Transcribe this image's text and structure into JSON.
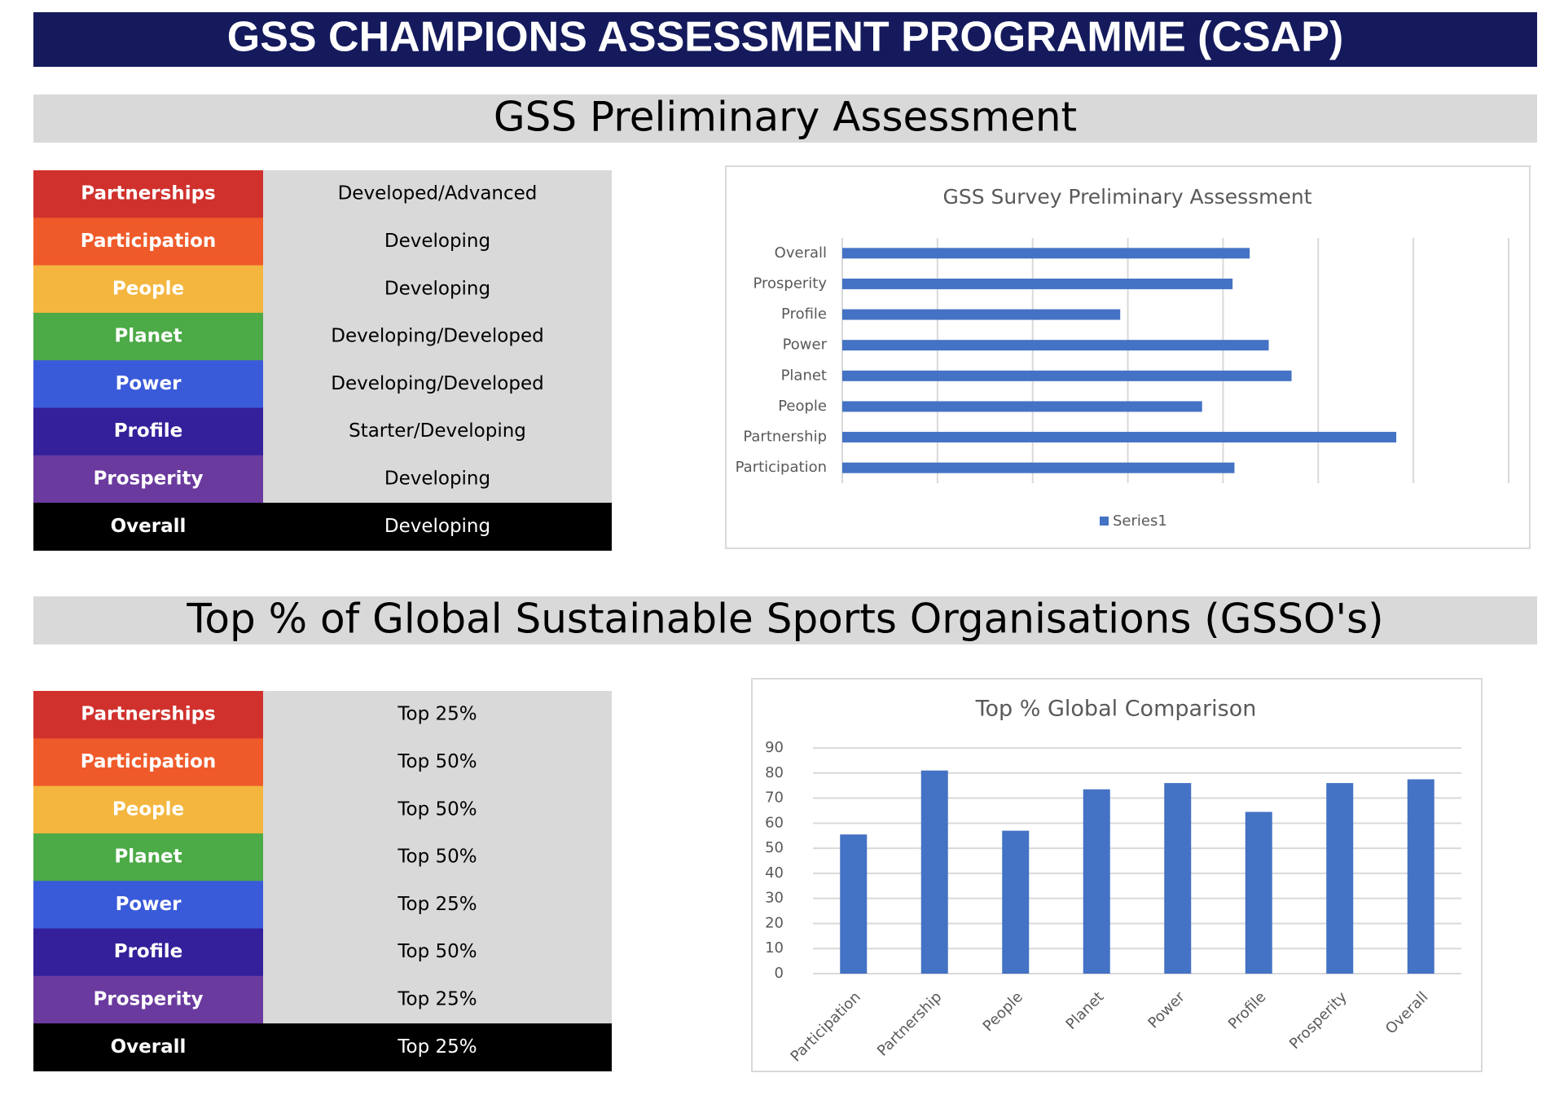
{
  "header": {
    "title": "GSS CHAMPIONS ASSESSMENT PROGRAMME (CSAP)"
  },
  "sections": [
    {
      "title": "GSS Preliminary Assessment"
    },
    {
      "title": "Top % of Global Sustainable Sports Organisations (GSSO's)"
    }
  ],
  "tables": [
    {
      "rows": [
        {
          "label": "Partnerships",
          "value": "Developed/Advanced",
          "color": "#d0312d"
        },
        {
          "label": "Participation",
          "value": "Developing",
          "color": "#ef5a2a"
        },
        {
          "label": "People",
          "value": "Developing",
          "color": "#f4b63f"
        },
        {
          "label": "Planet",
          "value": "Developing/Developed",
          "color": "#4caa47"
        },
        {
          "label": "Power",
          "value": "Developing/Developed",
          "color": "#3a5bd9"
        },
        {
          "label": "Profile",
          "value": "Starter/Developing",
          "color": "#33209a"
        },
        {
          "label": "Prosperity",
          "value": "Developing",
          "color": "#6a3a9f"
        },
        {
          "label": "Overall",
          "value": "Developing",
          "color": "#000000"
        }
      ]
    },
    {
      "rows": [
        {
          "label": "Partnerships",
          "value": "Top 25%",
          "color": "#d0312d"
        },
        {
          "label": "Participation",
          "value": "Top 50%",
          "color": "#ef5a2a"
        },
        {
          "label": "People",
          "value": "Top 50%",
          "color": "#f4b63f"
        },
        {
          "label": "Planet",
          "value": "Top 50%",
          "color": "#4caa47"
        },
        {
          "label": "Power",
          "value": "Top 25%",
          "color": "#3a5bd9"
        },
        {
          "label": "Profile",
          "value": "Top 50%",
          "color": "#33209a"
        },
        {
          "label": "Prosperity",
          "value": "Top 25%",
          "color": "#6a3a9f"
        },
        {
          "label": "Overall",
          "value": "Top 25%",
          "color": "#000000"
        }
      ]
    }
  ],
  "chart_data": [
    {
      "type": "hbar",
      "title": "GSS Survey Preliminary Assessment",
      "categories": [
        "Participation",
        "Partnership",
        "People",
        "Planet",
        "Power",
        "Profile",
        "Prosperity",
        "Overall"
      ],
      "series": [
        {
          "name": "Series1",
          "color": "#4472c4",
          "values": [
            2.06,
            2.91,
            1.89,
            2.36,
            2.24,
            1.46,
            2.05,
            2.14
          ]
        }
      ],
      "xlim": [
        0,
        3.5
      ],
      "xticks": [
        0,
        0.5,
        1,
        1.5,
        2,
        2.5,
        3,
        3.5
      ],
      "grid": true,
      "legend": "bottom"
    },
    {
      "type": "bar",
      "title": "Top % Global Comparison",
      "categories": [
        "Participation",
        "Partnership",
        "People",
        "Planet",
        "Power",
        "Profile",
        "Prosperity",
        "Overall"
      ],
      "values": [
        55.5,
        81,
        57,
        73.5,
        76,
        64.5,
        76,
        77.5
      ],
      "color": "#4472c4",
      "ylim": [
        0,
        90
      ],
      "yticks": [
        0,
        10,
        20,
        30,
        40,
        50,
        60,
        70,
        80,
        90
      ],
      "grid": true
    }
  ]
}
